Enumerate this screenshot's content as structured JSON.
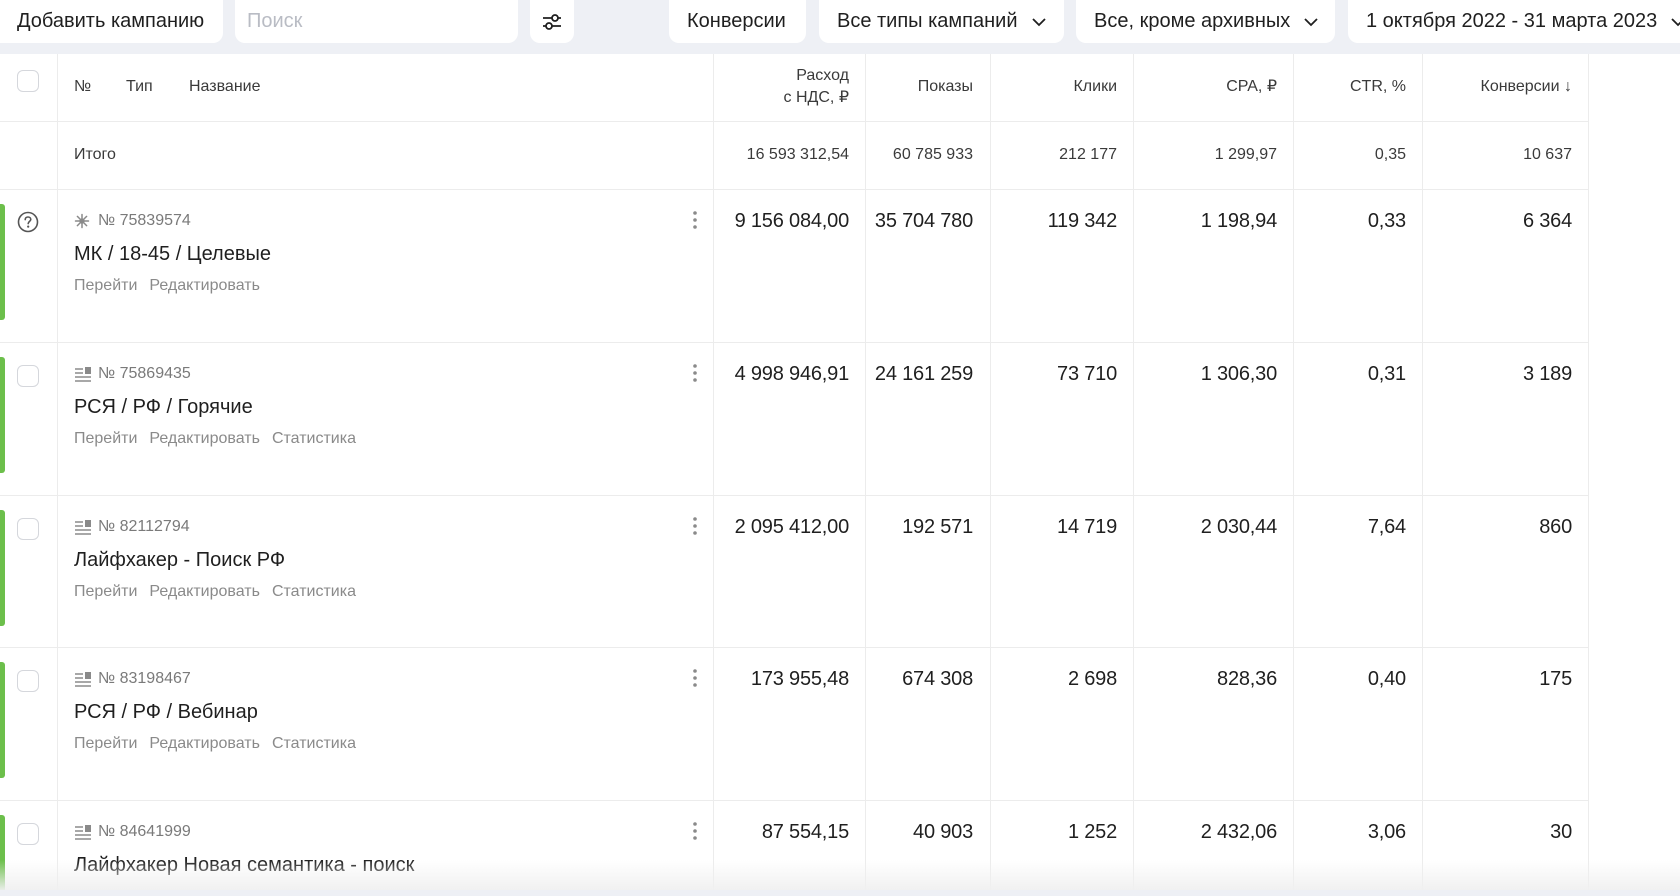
{
  "toolbar": {
    "add_campaign": "Добавить кампанию",
    "search_placeholder": "Поиск",
    "conversions": "Конверсии",
    "campaign_types": "Все типы кампаний",
    "archive_filter": "Все, кроме архивных",
    "date_range": "1 октября 2022 - 31 марта 2023"
  },
  "table": {
    "headers": {
      "number": "№",
      "type": "Тип",
      "name": "Название",
      "spend_line1": "Расход",
      "spend_line2": "с НДС, ₽",
      "impressions": "Показы",
      "clicks": "Клики",
      "cpa": "CPA, ₽",
      "ctr": "CTR, %",
      "conversions": "Конверсии ↓"
    },
    "totals": {
      "label": "Итого",
      "spend": "16 593 312,54",
      "impressions": "60 785 933",
      "clicks": "212 177",
      "cpa": "1 299,97",
      "ctr": "0,35",
      "conversions": "10 637"
    },
    "rows": [
      {
        "type_icon": "smart-campaign-icon",
        "id": "№ 75839574",
        "name": "МК / 18-45 / Целевые",
        "links": [
          "Перейти",
          "Редактировать"
        ],
        "spend": "9 156 084,00",
        "impressions": "35 704 780",
        "clicks": "119 342",
        "cpa": "1 198,94",
        "ctr": "0,33",
        "conversions": "6 364"
      },
      {
        "type_icon": "text-campaign-icon",
        "id": "№ 75869435",
        "name": "РСЯ / РФ / Горячие",
        "links": [
          "Перейти",
          "Редактировать",
          "Статистика"
        ],
        "spend": "4 998 946,91",
        "impressions": "24 161 259",
        "clicks": "73 710",
        "cpa": "1 306,30",
        "ctr": "0,31",
        "conversions": "3 189"
      },
      {
        "type_icon": "text-campaign-icon",
        "id": "№ 82112794",
        "name": "Лайфхакер - Поиск РФ",
        "links": [
          "Перейти",
          "Редактировать",
          "Статистика"
        ],
        "spend": "2 095 412,00",
        "impressions": "192 571",
        "clicks": "14 719",
        "cpa": "2 030,44",
        "ctr": "7,64",
        "conversions": "860"
      },
      {
        "type_icon": "text-campaign-icon",
        "id": "№ 83198467",
        "name": "РСЯ / РФ / Вебинар",
        "links": [
          "Перейти",
          "Редактировать",
          "Статистика"
        ],
        "spend": "173 955,48",
        "impressions": "674 308",
        "clicks": "2 698",
        "cpa": "828,36",
        "ctr": "0,40",
        "conversions": "175"
      },
      {
        "type_icon": "text-campaign-icon",
        "id": "№ 84641999",
        "name": "Лайфхакер Новая семантика - поиск",
        "links": [],
        "spend": "87 554,15",
        "impressions": "40 903",
        "clicks": "1 252",
        "cpa": "2 432,06",
        "ctr": "3,06",
        "conversions": "30"
      }
    ]
  },
  "colors": {
    "status_active": "#6cbf4b",
    "background": "#eef0f5"
  }
}
